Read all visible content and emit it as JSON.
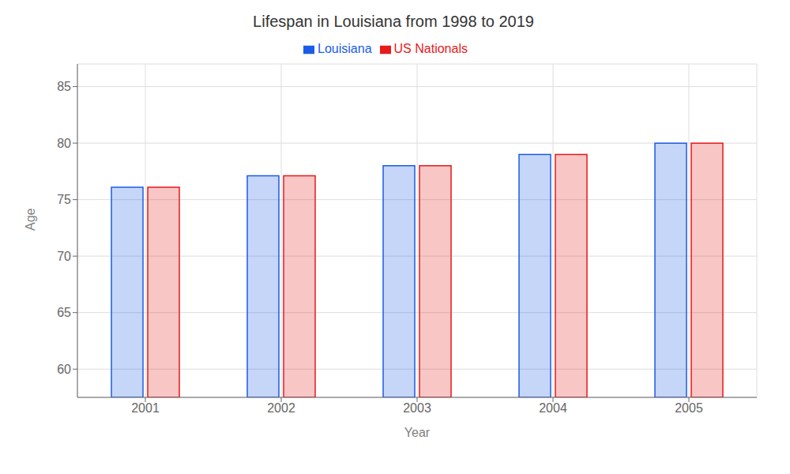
{
  "chart_data": {
    "type": "bar",
    "title": "Lifespan in Louisiana from 1998 to 2019",
    "x_label": "Year",
    "y_label": "Age",
    "categories": [
      "2001",
      "2002",
      "2003",
      "2004",
      "2005"
    ],
    "series": [
      {
        "name": "Louisiana",
        "color": "#1a5ce8",
        "values": [
          76.1,
          77.1,
          78.0,
          79.0,
          80.0
        ]
      },
      {
        "name": "US Nationals",
        "color": "#e81a1a",
        "values": [
          76.1,
          77.1,
          78.0,
          79.0,
          80.0
        ]
      }
    ],
    "ylim": [
      57.5,
      87
    ],
    "yticks": [
      60,
      65,
      70,
      75,
      80,
      85
    ],
    "grid": true,
    "legend": "top"
  }
}
